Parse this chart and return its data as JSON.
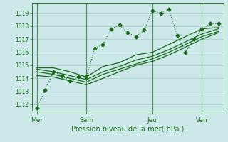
{
  "title": "Pression niveau de la mer( hPa )",
  "bg_color": "#cce8e8",
  "grid_color": "#aacccc",
  "line_color": "#1a6b1a",
  "dark_line_color": "#2a5a2a",
  "ylim": [
    1011.5,
    1019.8
  ],
  "yticks": [
    1012,
    1013,
    1014,
    1015,
    1016,
    1017,
    1018,
    1019
  ],
  "xtick_labels": [
    "Mer",
    "Sam",
    "Jeu",
    "Ven"
  ],
  "xtick_positions": [
    0,
    30,
    70,
    100
  ],
  "series1_x": [
    0,
    5,
    10,
    15,
    20,
    25,
    30,
    35,
    40,
    45,
    50,
    55,
    60,
    65,
    70,
    75,
    80,
    85,
    90,
    95,
    100,
    105,
    110
  ],
  "series1_y": [
    1011.7,
    1013.1,
    1014.5,
    1014.2,
    1013.8,
    1014.1,
    1014.1,
    1016.3,
    1016.6,
    1017.8,
    1018.1,
    1017.5,
    1017.2,
    1017.7,
    1019.2,
    1019.0,
    1019.3,
    1017.3,
    1016.0,
    1017.0,
    1017.8,
    1018.2,
    1018.2
  ],
  "series2_x": [
    0,
    10,
    20,
    30,
    40,
    50,
    60,
    70,
    80,
    90,
    100,
    110
  ],
  "series2_y": [
    1014.8,
    1014.8,
    1014.5,
    1014.1,
    1014.9,
    1015.2,
    1015.8,
    1016.0,
    1016.6,
    1017.2,
    1017.8,
    1017.9
  ],
  "series3_x": [
    0,
    10,
    20,
    30,
    40,
    50,
    60,
    70,
    80,
    90,
    100,
    110
  ],
  "series3_y": [
    1014.7,
    1014.5,
    1014.2,
    1013.9,
    1014.5,
    1014.9,
    1015.4,
    1015.7,
    1016.2,
    1016.8,
    1017.4,
    1017.8
  ],
  "series4_x": [
    0,
    10,
    20,
    30,
    40,
    50,
    60,
    70,
    80,
    90,
    100,
    110
  ],
  "series4_y": [
    1014.5,
    1014.3,
    1014.0,
    1013.7,
    1014.3,
    1014.7,
    1015.1,
    1015.5,
    1016.0,
    1016.6,
    1017.2,
    1017.6
  ],
  "series5_x": [
    0,
    10,
    20,
    30,
    40,
    50,
    60,
    70,
    80,
    90,
    100,
    110
  ],
  "series5_y": [
    1014.2,
    1014.1,
    1013.8,
    1013.5,
    1014.0,
    1014.5,
    1015.0,
    1015.3,
    1015.8,
    1016.4,
    1017.0,
    1017.5
  ],
  "vline_positions": [
    0,
    30,
    70,
    100
  ],
  "marker": "D",
  "markersize": 2.5,
  "xlim": [
    -3,
    113
  ]
}
